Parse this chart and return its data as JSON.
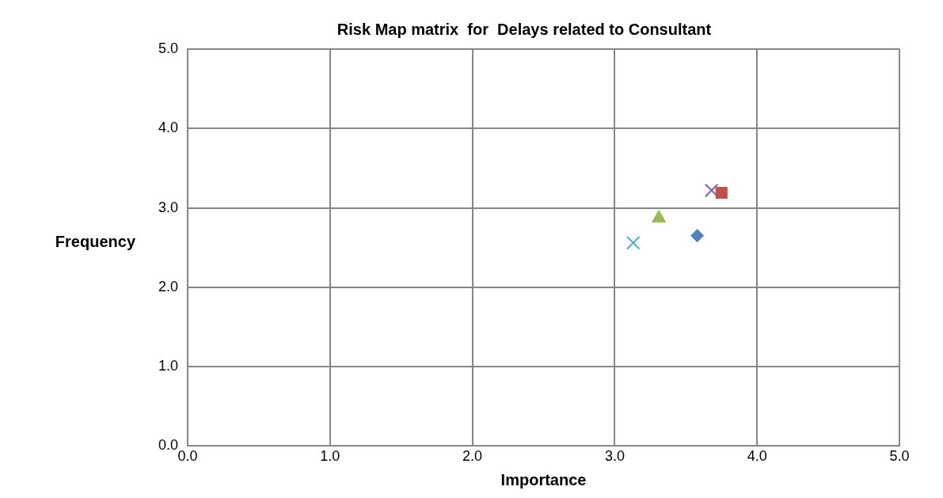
{
  "chart_data": {
    "type": "scatter",
    "title": "Risk Map matrix  for  Delays related to Consultant",
    "xlabel": "Importance",
    "ylabel": "Frequency",
    "xlim": [
      0,
      5
    ],
    "ylim": [
      0,
      5
    ],
    "xticks": [
      {
        "value": 0,
        "label": "0.0"
      },
      {
        "value": 1,
        "label": "1.0"
      },
      {
        "value": 2,
        "label": "2.0"
      },
      {
        "value": 3,
        "label": "3.0"
      },
      {
        "value": 4,
        "label": "4.0"
      },
      {
        "value": 5,
        "label": "5.0"
      }
    ],
    "yticks": [
      {
        "value": 0,
        "label": "0.0"
      },
      {
        "value": 1,
        "label": "1.0"
      },
      {
        "value": 2,
        "label": "2.0"
      },
      {
        "value": 3,
        "label": "3.0"
      },
      {
        "value": 4,
        "label": "4.0"
      },
      {
        "value": 5,
        "label": "5.0"
      }
    ],
    "grid": true,
    "legend": false,
    "series": [
      {
        "color": "#4f81bd",
        "marker": "diamond",
        "x": [
          3.58
        ],
        "values": [
          2.65
        ]
      },
      {
        "color": "#c0504d",
        "marker": "square",
        "x": [
          3.75
        ],
        "values": [
          3.19
        ]
      },
      {
        "color": "#9bbb59",
        "marker": "triangle",
        "x": [
          3.31
        ],
        "values": [
          2.87
        ]
      },
      {
        "color": "#8064a2",
        "marker": "cross",
        "x": [
          3.68
        ],
        "values": [
          3.22
        ]
      },
      {
        "color": "#4bacc6",
        "marker": "cross",
        "x": [
          3.13
        ],
        "values": [
          2.56
        ]
      }
    ]
  }
}
